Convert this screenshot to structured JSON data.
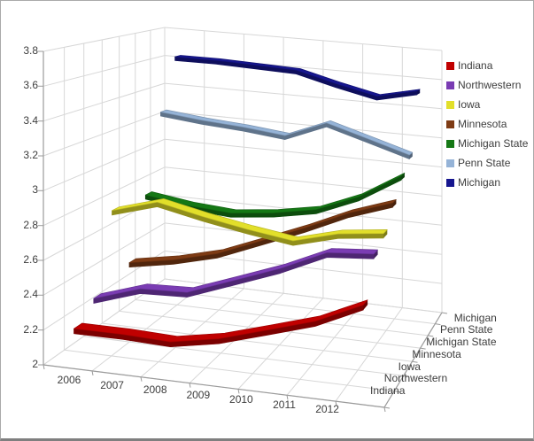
{
  "figure": {
    "background": "#ffffff",
    "border_color": "#a9a9a9",
    "grid_color": "#d7d7d7",
    "axis_color": "#9b9b9b",
    "text_color": "#3d3d3d"
  },
  "chart_data": {
    "type": "line",
    "projection": "3d",
    "title": "",
    "xlabel": "",
    "ylabel": "",
    "grid": true,
    "legend_position": "right",
    "categories": [
      "2006",
      "2007",
      "2008",
      "2009",
      "2010",
      "2011",
      "2012"
    ],
    "series": [
      {
        "name": "Indiana",
        "color": "#c00000",
        "values": [
          2.2,
          2.2,
          2.19,
          2.24,
          2.32,
          2.4,
          2.52
        ]
      },
      {
        "name": "Northwestern",
        "color": "#7a3cb3",
        "values": [
          2.3,
          2.39,
          2.4,
          2.5,
          2.6,
          2.72,
          2.74
        ]
      },
      {
        "name": "Iowa",
        "color": "#e2df2a",
        "values": [
          2.77,
          2.85,
          2.79,
          2.74,
          2.7,
          2.77,
          2.8
        ]
      },
      {
        "name": "Minnesota",
        "color": "#7e3b14",
        "values": [
          2.38,
          2.43,
          2.5,
          2.61,
          2.72,
          2.84,
          2.93
        ]
      },
      {
        "name": "Michigan State",
        "color": "#157815",
        "values": [
          2.76,
          2.72,
          2.7,
          2.73,
          2.78,
          2.89,
          3.05
        ]
      },
      {
        "name": "Penn State",
        "color": "#95b3d7",
        "values": [
          3.27,
          3.24,
          3.22,
          3.19,
          3.3,
          3.22,
          3.14
        ]
      },
      {
        "name": "Michigan",
        "color": "#16168f",
        "values": [
          3.62,
          3.62,
          3.61,
          3.6,
          3.53,
          3.47,
          3.53
        ]
      }
    ],
    "value_axis": {
      "min": 2,
      "max": 3.8,
      "step": 0.2,
      "tick_labels": [
        "2",
        "2.2",
        "2.4",
        "2.6",
        "2.8",
        "3",
        "3.2",
        "3.4",
        "3.6",
        "3.8"
      ]
    },
    "depth_axis_labels": [
      "Indiana",
      "Northwestern",
      "Iowa",
      "Minnesota",
      "Michigan State",
      "Penn State",
      "Michigan"
    ]
  }
}
